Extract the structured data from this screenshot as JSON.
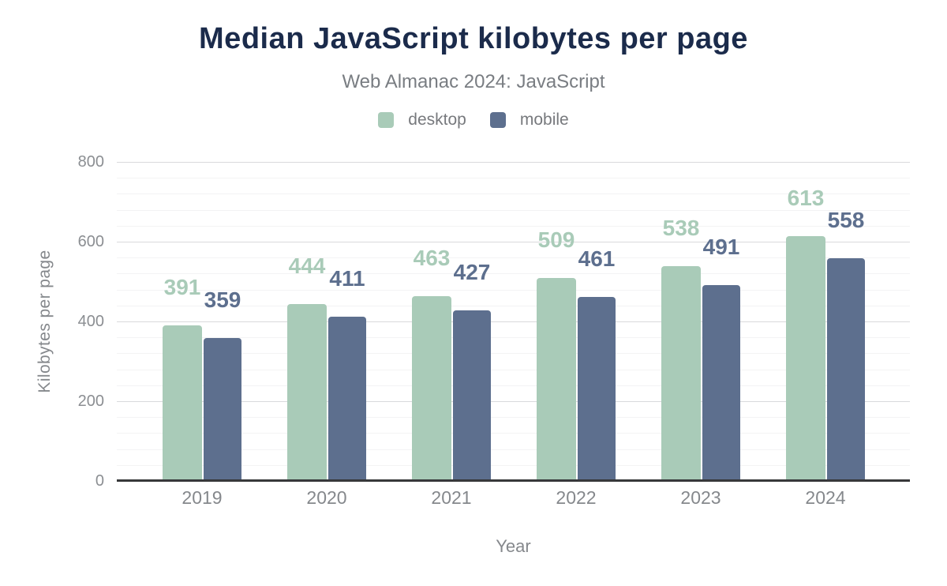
{
  "chart_data": {
    "type": "bar",
    "title": "Median JavaScript kilobytes per page",
    "subtitle": "Web Almanac 2024: JavaScript",
    "xlabel": "Year",
    "ylabel": "Kilobytes per page",
    "categories": [
      "2019",
      "2020",
      "2021",
      "2022",
      "2023",
      "2024"
    ],
    "series": [
      {
        "name": "desktop",
        "color": "#a9cbb8",
        "values": [
          391,
          444,
          463,
          509,
          538,
          613
        ]
      },
      {
        "name": "mobile",
        "color": "#5d6f8e",
        "values": [
          359,
          411,
          427,
          461,
          491,
          558
        ]
      }
    ],
    "ylim": [
      0,
      800
    ],
    "yticks": [
      0,
      200,
      400,
      600,
      800
    ],
    "minor_grid_interval": 40,
    "grid": "horizontal, major every 200 + faint minor every 40",
    "legend_position": "top-center",
    "data_labels": "values above each bar, colored to match series"
  },
  "palette": {
    "title_text": "#1b2b4b",
    "subtitle_text": "#797d82",
    "axis_text": "#85888c",
    "axis_line": "#37383a",
    "major_gridline": "#d9dadc",
    "minor_gridline": "#f3f3f4",
    "background": "#ffffff"
  }
}
